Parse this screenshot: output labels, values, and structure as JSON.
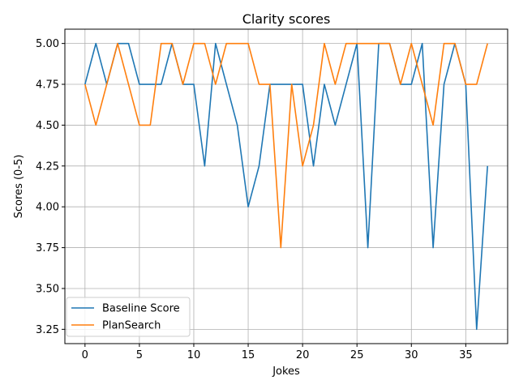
{
  "chart_data": {
    "type": "line",
    "title": "Clarity scores",
    "xlabel": "Jokes",
    "ylabel": "Scores (0-5)",
    "xlim": [
      -1.85,
      38.85
    ],
    "ylim": [
      3.1625,
      5.0875
    ],
    "xticks": [
      0,
      5,
      10,
      15,
      20,
      25,
      30,
      35
    ],
    "yticks": [
      3.25,
      3.5,
      3.75,
      4.0,
      4.25,
      4.5,
      4.75,
      5.0
    ],
    "xtick_labels": [
      "0",
      "5",
      "10",
      "15",
      "20",
      "25",
      "30",
      "35"
    ],
    "ytick_labels": [
      "3.25",
      "3.50",
      "3.75",
      "4.00",
      "4.25",
      "4.50",
      "4.75",
      "5.00"
    ],
    "grid": true,
    "legend_position": "lower-left",
    "x": [
      0,
      1,
      2,
      3,
      4,
      5,
      6,
      7,
      8,
      9,
      10,
      11,
      12,
      13,
      14,
      15,
      16,
      17,
      18,
      19,
      20,
      21,
      22,
      23,
      24,
      25,
      26,
      27,
      28,
      29,
      30,
      31,
      32,
      33,
      34,
      35,
      36,
      37
    ],
    "series": [
      {
        "name": "Baseline Score",
        "color": "#1f77b4",
        "values": [
          4.75,
          5.0,
          4.75,
          5.0,
          5.0,
          4.75,
          4.75,
          4.75,
          5.0,
          4.75,
          4.75,
          4.25,
          5.0,
          4.75,
          4.5,
          4.0,
          4.25,
          4.75,
          4.75,
          4.75,
          4.75,
          4.25,
          4.75,
          4.5,
          4.75,
          5.0,
          3.75,
          5.0,
          5.0,
          4.75,
          4.75,
          5.0,
          3.75,
          4.75,
          5.0,
          4.75,
          3.25,
          4.25
        ]
      },
      {
        "name": "PlanSearch",
        "color": "#ff7f0e",
        "values": [
          4.75,
          4.5,
          4.75,
          5.0,
          4.75,
          4.5,
          4.5,
          5.0,
          5.0,
          4.75,
          5.0,
          5.0,
          4.75,
          5.0,
          5.0,
          5.0,
          4.75,
          4.75,
          3.75,
          4.75,
          4.25,
          4.5,
          5.0,
          4.75,
          5.0,
          5.0,
          5.0,
          5.0,
          5.0,
          4.75,
          5.0,
          4.75,
          4.5,
          5.0,
          5.0,
          4.75,
          4.75,
          5.0
        ]
      }
    ]
  }
}
